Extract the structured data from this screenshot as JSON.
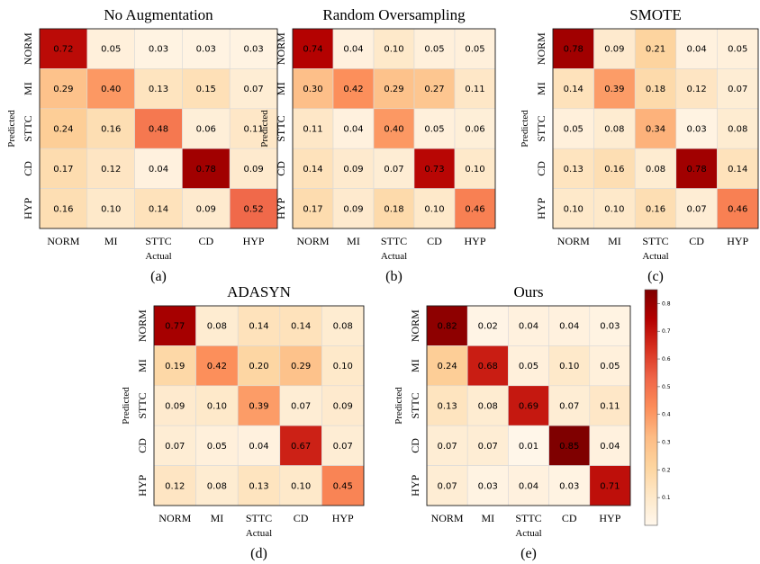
{
  "chart_data": [
    {
      "type": "heatmap",
      "title": "No Augmentation",
      "caption": "(a)",
      "xlabel": "Actual",
      "ylabel": "Predicted",
      "x_categories": [
        "NORM",
        "MI",
        "STTC",
        "CD",
        "HYP"
      ],
      "y_categories": [
        "NORM",
        "MI",
        "STTC",
        "CD",
        "HYP"
      ],
      "values": [
        [
          "0.72",
          "0.05",
          "0.03",
          "0.03",
          "0.03"
        ],
        [
          "0.29",
          "0.40",
          "0.13",
          "0.15",
          "0.07"
        ],
        [
          "0.24",
          "0.16",
          "0.48",
          "0.06",
          "0.11"
        ],
        [
          "0.17",
          "0.12",
          "0.04",
          "0.78",
          "0.09"
        ],
        [
          "0.16",
          "0.10",
          "0.14",
          "0.09",
          "0.52"
        ]
      ]
    },
    {
      "type": "heatmap",
      "title": "Random Oversampling",
      "caption": "(b)",
      "xlabel": "Actual",
      "ylabel": "Predicted",
      "x_categories": [
        "NORM",
        "MI",
        "STTC",
        "CD",
        "HYP"
      ],
      "y_categories": [
        "NORM",
        "MI",
        "STTC",
        "CD",
        "HYP"
      ],
      "values": [
        [
          "0.74",
          "0.04",
          "0.10",
          "0.05",
          "0.05"
        ],
        [
          "0.30",
          "0.42",
          "0.29",
          "0.27",
          "0.11"
        ],
        [
          "0.11",
          "0.04",
          "0.40",
          "0.05",
          "0.06"
        ],
        [
          "0.14",
          "0.09",
          "0.07",
          "0.73",
          "0.10"
        ],
        [
          "0.17",
          "0.09",
          "0.18",
          "0.10",
          "0.46"
        ]
      ]
    },
    {
      "type": "heatmap",
      "title": "SMOTE",
      "caption": "(c)",
      "xlabel": "Actual",
      "ylabel": "Predicted",
      "x_categories": [
        "NORM",
        "MI",
        "STTC",
        "CD",
        "HYP"
      ],
      "y_categories": [
        "NORM",
        "MI",
        "STTC",
        "CD",
        "HYP"
      ],
      "values": [
        [
          "0.78",
          "0.09",
          "0.21",
          "0.04",
          "0.05"
        ],
        [
          "0.14",
          "0.39",
          "0.18",
          "0.12",
          "0.07"
        ],
        [
          "0.05",
          "0.08",
          "0.34",
          "0.03",
          "0.08"
        ],
        [
          "0.13",
          "0.16",
          "0.08",
          "0.78",
          "0.14"
        ],
        [
          "0.10",
          "0.10",
          "0.16",
          "0.07",
          "0.46"
        ]
      ]
    },
    {
      "type": "heatmap",
      "title": "ADASYN",
      "caption": "(d)",
      "xlabel": "Actual",
      "ylabel": "Predicted",
      "x_categories": [
        "NORM",
        "MI",
        "STTC",
        "CD",
        "HYP"
      ],
      "y_categories": [
        "NORM",
        "MI",
        "STTC",
        "CD",
        "HYP"
      ],
      "values": [
        [
          "0.77",
          "0.08",
          "0.14",
          "0.14",
          "0.08"
        ],
        [
          "0.19",
          "0.42",
          "0.20",
          "0.29",
          "0.10"
        ],
        [
          "0.09",
          "0.10",
          "0.39",
          "0.07",
          "0.09"
        ],
        [
          "0.07",
          "0.05",
          "0.04",
          "0.67",
          "0.07"
        ],
        [
          "0.12",
          "0.08",
          "0.13",
          "0.10",
          "0.45"
        ]
      ]
    },
    {
      "type": "heatmap",
      "title": "Ours",
      "caption": "(e)",
      "xlabel": "Actual",
      "ylabel": "Predicted",
      "x_categories": [
        "NORM",
        "MI",
        "STTC",
        "CD",
        "HYP"
      ],
      "y_categories": [
        "NORM",
        "MI",
        "STTC",
        "CD",
        "HYP"
      ],
      "values": [
        [
          "0.82",
          "0.02",
          "0.04",
          "0.04",
          "0.03"
        ],
        [
          "0.24",
          "0.68",
          "0.05",
          "0.10",
          "0.05"
        ],
        [
          "0.13",
          "0.08",
          "0.69",
          "0.07",
          "0.11"
        ],
        [
          "0.07",
          "0.07",
          "0.01",
          "0.85",
          "0.04"
        ],
        [
          "0.07",
          "0.03",
          "0.04",
          "0.03",
          "0.71"
        ]
      ]
    }
  ],
  "colorbar": {
    "colormap": "OrRd",
    "range": [
      0.0,
      0.85
    ],
    "ticks": [
      "0.1",
      "0.2",
      "0.3",
      "0.4",
      "0.5",
      "0.6",
      "0.7",
      "0.8"
    ]
  }
}
